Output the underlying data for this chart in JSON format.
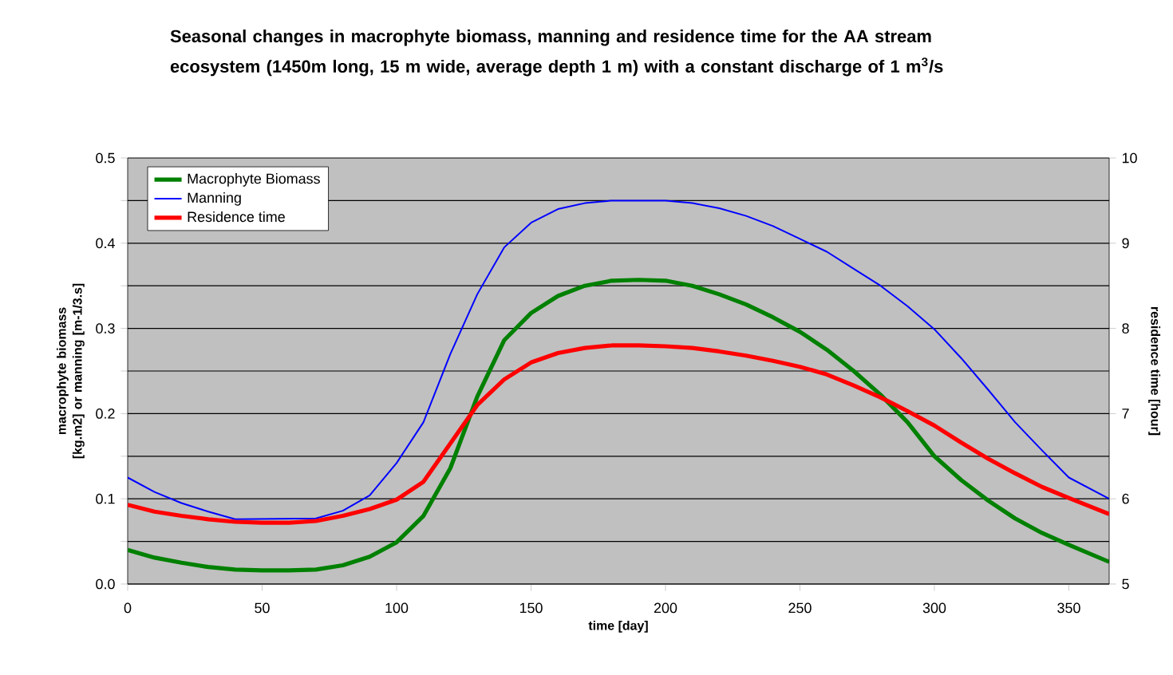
{
  "chart_data": {
    "type": "line",
    "title": "Seasonal changes in macrophyte biomass, manning and residence time for the AA stream ecosystem (1450m long, 15 m wide, average depth 1 m) with a constant discharge of 1 m$^{3}$/s",
    "xlabel": "time [day]",
    "ylabel": "macrophyte biomass [kg.m2] or manning [m-1/3.s]",
    "y2label": "residence time [hour]",
    "x": [
      0,
      10,
      20,
      30,
      40,
      50,
      60,
      70,
      80,
      90,
      100,
      110,
      120,
      130,
      140,
      150,
      160,
      170,
      180,
      190,
      200,
      210,
      220,
      230,
      240,
      250,
      260,
      270,
      280,
      290,
      300,
      310,
      320,
      330,
      340,
      350,
      365
    ],
    "series": [
      {
        "name": "Macrophyte Biomass",
        "color": "#008000",
        "values": [
          0.04,
          0.031,
          0.025,
          0.02,
          0.017,
          0.016,
          0.016,
          0.017,
          0.022,
          0.032,
          0.049,
          0.08,
          0.136,
          0.22,
          0.286,
          0.318,
          0.338,
          0.35,
          0.356,
          0.357,
          0.356,
          0.35,
          0.34,
          0.328,
          0.313,
          0.296,
          0.275,
          0.25,
          0.222,
          0.19,
          0.15,
          0.122,
          0.098,
          0.077,
          0.06,
          0.046,
          0.026
        ]
      },
      {
        "name": "Manning",
        "color": "#0000ff",
        "values": [
          0.125,
          0.108,
          0.095,
          0.085,
          0.076,
          null,
          null,
          0.077,
          0.086,
          0.104,
          0.142,
          0.19,
          0.27,
          0.34,
          0.395,
          0.424,
          0.44,
          0.447,
          0.45,
          0.45,
          0.45,
          0.447,
          0.441,
          0.432,
          0.42,
          0.405,
          0.39,
          0.37,
          0.35,
          0.326,
          0.299,
          0.265,
          0.228,
          0.19,
          0.157,
          0.125,
          0.1
        ]
      },
      {
        "name": "Residence time",
        "color": "#ff0000",
        "axis": "y2",
        "values": [
          5.93,
          5.85,
          5.8,
          5.76,
          5.73,
          5.72,
          5.72,
          5.74,
          5.8,
          5.88,
          5.99,
          6.2,
          6.65,
          7.1,
          7.4,
          7.6,
          7.71,
          7.77,
          7.8,
          7.8,
          7.79,
          7.77,
          7.73,
          7.68,
          7.62,
          7.55,
          7.46,
          7.33,
          7.19,
          7.03,
          6.86,
          6.66,
          6.47,
          6.3,
          6.14,
          6.01,
          5.82
        ]
      }
    ],
    "xlim": [
      0,
      365
    ],
    "xticks": [
      0,
      50,
      100,
      150,
      200,
      250,
      300,
      350
    ],
    "ylim": [
      0,
      0.5
    ],
    "yticks": [
      {
        "value": 0,
        "label": "0.0"
      },
      {
        "value": 0.05,
        "label": null
      },
      0.1,
      {
        "value": 0.15,
        "label": null
      },
      0.2,
      {
        "value": 0.25,
        "label": null
      },
      0.3,
      {
        "value": 0.35,
        "label": null
      },
      0.4,
      {
        "value": 0.45,
        "label": null
      },
      0.5
    ],
    "y2lim": [
      5,
      10
    ],
    "y2ticks": [
      5,
      6,
      7,
      8,
      9,
      10
    ],
    "grid": "y",
    "legend": "top left"
  }
}
